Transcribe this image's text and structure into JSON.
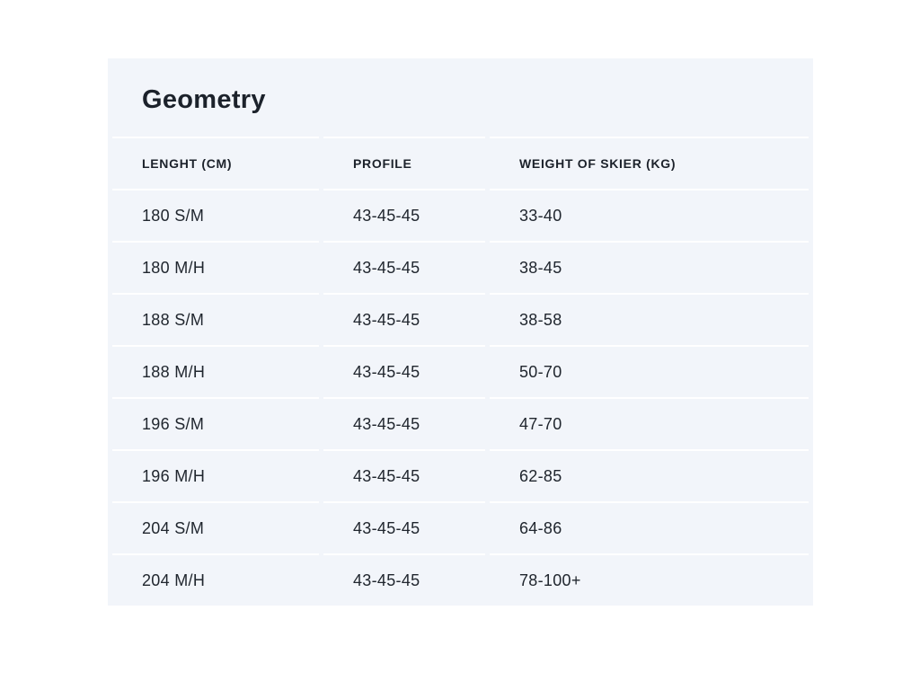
{
  "geometry_table": {
    "title": "Geometry",
    "columns": [
      "LENGHT (CM)",
      "PROFILE",
      "WEIGHT OF SKIER (KG)"
    ],
    "rows": [
      [
        "180 S/M",
        "43-45-45",
        "33-40"
      ],
      [
        "180 M/H",
        "43-45-45",
        "38-45"
      ],
      [
        "188 S/M",
        "43-45-45",
        "38-58"
      ],
      [
        "188 M/H",
        "43-45-45",
        "50-70"
      ],
      [
        "196 S/M",
        "43-45-45",
        "47-70"
      ],
      [
        "196 M/H",
        "43-45-45",
        "62-85"
      ],
      [
        "204 S/M",
        "43-45-45",
        "64-86"
      ],
      [
        "204 M/H",
        "43-45-45",
        "78-100+"
      ]
    ]
  },
  "colors": {
    "page_background": "#ffffff",
    "card_background": "#f2f5fa",
    "separator": "#ffffff",
    "text": "#1f252d"
  }
}
